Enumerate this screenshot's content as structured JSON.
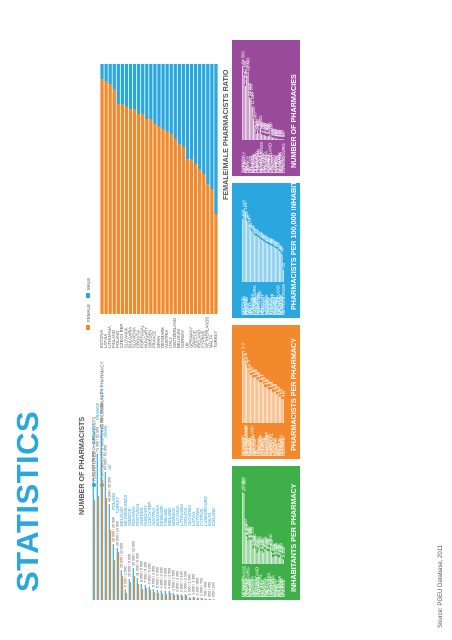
{
  "page": {
    "title": "STATISTICS",
    "source": "Source: PGEU Database, 2011"
  },
  "colors": {
    "blue": "#2aa7df",
    "orange": "#f28a2d",
    "green": "#3fb049",
    "purple": "#9a4a9a",
    "title": "#2aa7df"
  },
  "chart_data": [
    {
      "id": "number-of-pharmacists",
      "type": "bar",
      "title": "NUMBER OF PHARMACISTS",
      "legend": [
        "REGISTERED PHARMACISTS",
        "PHARMACISTS WORKING IN COMMUNITY PHARMACY"
      ],
      "categories": [
        "GERMANY",
        "FRANCE",
        "ITALY",
        "SPAIN",
        "UK",
        "POLAND",
        "TURKEY",
        "BELGIUM",
        "NETHERLANDS",
        "GREECE",
        "ROMANIA",
        "PORTUGAL",
        "SWEDEN",
        "HUNGARY",
        "CZECH REP.",
        "AUSTRIA",
        "BULGARIA",
        "DENMARK",
        "FINLAND",
        "IRELAND",
        "NORWAY",
        "SLOVAKIA",
        "LITHUANIA",
        "CROATIA",
        "SLOVENIA",
        "LATVIA",
        "ESTONIA",
        "CYPRUS",
        "LUXEMBOURG",
        "MALTA",
        "ICELAND"
      ],
      "series": [
        {
          "name": "REGISTERED PHARMACISTS",
          "values": [
            61000,
            73000,
            85000,
            64000,
            48000,
            28000,
            26000,
            15000,
            5300,
            10500,
            16000,
            11000,
            8000,
            7600,
            6800,
            5500,
            5000,
            4800,
            4600,
            4600,
            3500,
            3000,
            2800,
            2900,
            1300,
            1600,
            1200,
            1000,
            700,
            600,
            350
          ]
        },
        {
          "name": "PHARMACISTS WORKING IN COMMUNITY PHARMACY",
          "values": [
            50000,
            52000,
            60000,
            51000,
            35000,
            20000,
            24000,
            12000,
            3500,
            9000,
            12000,
            8000,
            5500,
            6100,
            5200,
            3900,
            3500,
            3300,
            3000,
            3500,
            2500,
            2400,
            2100,
            2300,
            1000,
            1300,
            800,
            700,
            400,
            450,
            230
          ]
        }
      ],
      "value_labels": {
        "REGISTERED PHARMACISTS": [
          "61 000",
          "73 000",
          "85 000",
          "64 000",
          "48 000",
          "28 000",
          "26 000",
          "15 000",
          "5 300",
          "10 500",
          "16 000",
          "11 000",
          "8 000",
          "7 600",
          "6 800",
          "5 500",
          "5 000",
          "4 800",
          "4 600",
          "4 600",
          "3 500",
          "3 000",
          "2 800",
          "2 900",
          "1 300",
          "1 600",
          "1 200",
          "1 000",
          "700",
          "600",
          "350"
        ],
        "PHARMACISTS WORKING IN COMMUNITY PHARMACY": [
          "50 000",
          "52 000",
          "60 000",
          "51 000",
          "35 000",
          "20 000",
          "24 000",
          "12 000",
          "3 500",
          "9 000",
          "12 000",
          "8 000",
          "5 500",
          "6 100",
          "5 200",
          "3 900",
          "3 500",
          "3 300",
          "3 000",
          "3 500",
          "2 500",
          "2 400",
          "2 100",
          "2 300",
          "1 000",
          "1 300",
          "800",
          "700",
          "400",
          "450",
          "230"
        ]
      }
    },
    {
      "id": "female-male-ratio",
      "type": "bar",
      "stacked": true,
      "title": "FEMALE/MALE PHARMACISTS RATIO",
      "legend": [
        "FEMALE",
        "MALE"
      ],
      "categories": [
        "ESTONIA",
        "LATVIA",
        "LITHUANIA",
        "FINLAND",
        "POLAND",
        "CZECH REP.",
        "SLOVAKIA",
        "BULGARIA",
        "SLOVENIA",
        "CROATIA",
        "PORTUGAL",
        "HUNGARY",
        "SWEDEN",
        "FRANCE",
        "SPAIN",
        "DENMARK",
        "AUSTRIA",
        "ITALY",
        "SWITZERLAND",
        "BELGIUM",
        "NORWAY",
        "UK",
        "GERMANY",
        "GREECE",
        "IRELAND",
        "CYPRUS",
        "NETHERLANDS",
        "MALTA",
        "TURKEY"
      ],
      "series": [
        {
          "name": "FEMALE",
          "values": [
            94,
            93,
            92,
            90,
            84,
            84,
            83,
            82,
            82,
            80,
            80,
            78,
            78,
            76,
            75,
            74,
            73,
            72,
            70,
            68,
            67,
            62,
            62,
            60,
            58,
            56,
            52,
            50,
            40
          ]
        },
        {
          "name": "MALE",
          "values": [
            6,
            7,
            8,
            10,
            16,
            16,
            17,
            18,
            18,
            20,
            20,
            22,
            22,
            24,
            25,
            26,
            27,
            28,
            30,
            32,
            33,
            38,
            38,
            40,
            42,
            44,
            48,
            50,
            60
          ]
        }
      ],
      "xlim": [
        0,
        100
      ]
    },
    {
      "id": "inhabitants-per-pharmacy",
      "type": "bar",
      "title": "INHABITANTS PER PHARMACY",
      "color": "#3fb049",
      "categories": [
        "DENMARK",
        "NETHERLANDS",
        "SWEDEN",
        "AUSTRIA",
        "LUXEMBOURG",
        "FINLAND",
        "NORWAY",
        "SLOVENIA",
        "CROATIA",
        "UK",
        "GERMANY",
        "SWITZERLAND",
        "SLOVAKIA",
        "PORTUGAL",
        "LATVIA",
        "POLAND",
        "FRANCE",
        "ROMANIA",
        "ITALY",
        "ICELAND",
        "CZECH REP.",
        "HUNGARY",
        "ESTONIA",
        "LITHUANIA",
        "IRELAND",
        "SPAIN",
        "TURKEY",
        "MALTA",
        "BULGARIA",
        "BELGIUM",
        "CYPRUS",
        "GREECE"
      ],
      "values": [
        17800,
        17500,
        8000,
        6800,
        5800,
        6200,
        6000,
        6100,
        3900,
        4300,
        3800,
        2800,
        3300,
        3800,
        3200,
        3200,
        2800,
        3700,
        3500,
        3200,
        3100,
        4300,
        2900,
        1700,
        1900,
        2100,
        2000,
        1700,
        1600,
        2100,
        1400,
        1100
      ],
      "value_labels": [
        "17 800",
        "17 500",
        "8 000",
        "6 800",
        "5 800",
        "6 200",
        "6 000",
        "6 100",
        "3 900",
        "4 300",
        "3 800",
        "2 800",
        "3 300",
        "3 800",
        "3 200",
        "3 200",
        "2 800",
        "3 700",
        "3 500",
        "3 200",
        "3 100",
        "4 300",
        "2 900",
        "1 700",
        "1 900",
        "2 100",
        "2 000",
        "1 700",
        "1 600",
        "2 100",
        "1 400",
        "1 100"
      ]
    },
    {
      "id": "pharmacists-per-pharmacy",
      "type": "bar",
      "title": "PHARMACISTS PER PHARMACY",
      "color": "#f28a2d",
      "categories": [
        "DENMARK",
        "SWEDEN",
        "NETHERLANDS",
        "LUXEMBOURG",
        "IRELAND",
        "FINLAND",
        "NORWAY",
        "SWITZERLAND",
        "SLOVENIA",
        "FRANCE",
        "UK",
        "ITALY",
        "CROATIA",
        "SLOVAKIA",
        "GERMANY",
        "POLAND",
        "AUSTRIA",
        "BELGIUM",
        "CZECH REP.",
        "HUNGARY",
        "LITHUANIA",
        "TURKEY",
        "PORTUGAL",
        "LATVIA",
        "ESTONIA",
        "ICELAND",
        "SPAIN",
        "MALTA",
        "GREECE",
        "BULGARIA",
        "CYPRUS",
        "ROMANIA"
      ],
      "values": [
        3.0,
        2.7,
        2.6,
        2.4,
        2.3,
        2.1,
        2.0,
        2.0,
        1.9,
        1.9,
        1.9,
        1.8,
        1.8,
        1.7,
        1.7,
        1.7,
        1.6,
        1.5,
        1.5,
        1.5,
        1.4,
        1.4,
        1.4,
        1.3,
        1.3,
        1.3,
        1.2,
        1.2,
        1.1,
        1.1,
        1.0,
        1.0
      ],
      "value_labels": [
        "3.0",
        "2.7",
        "2.6",
        "2.4",
        "2.3",
        "2.1",
        "2.0",
        "2.0",
        "1.9",
        "1.9",
        "1.9",
        "1.8",
        "1.8",
        "1.7",
        "1.7",
        "1.7",
        "1.6",
        "1.5",
        "1.5",
        "1.5",
        "1.4",
        "1.4",
        "1.4",
        "1.3",
        "1.3",
        "1.3",
        "1.2",
        "1.2",
        "1.1",
        "1.1",
        "1.0",
        "1.0"
      ]
    },
    {
      "id": "pharmacists-per-100000",
      "type": "bar",
      "title": "PHARMACISTS PER 100,000 INHABITANTS",
      "color": "#2aa7df",
      "categories": [
        "GREECE",
        "BELGIUM",
        "FRANCE",
        "IRELAND",
        "SPAIN",
        "ITALY",
        "MALTA",
        "BULGARIA",
        "CYPRUS",
        "LUXEMBOURG",
        "FINLAND",
        "LITHUANIA",
        "PORTUGAL",
        "CZECH REP.",
        "UK",
        "HUNGARY",
        "ESTONIA",
        "LATVIA",
        "SLOVAKIA",
        "SWEDEN",
        "TURKEY",
        "POLAND",
        "SLOVENIA",
        "GERMANY",
        "NORWAY",
        "ICELAND",
        "AUSTRIA",
        "SWITZERLAND",
        "CROATIA",
        "DENMARK",
        "ROMANIA",
        "NETHERLANDS"
      ],
      "values": [
        102,
        118,
        114,
        100,
        98,
        93,
        85,
        82,
        80,
        76,
        75,
        74,
        72,
        71,
        69,
        68,
        66,
        65,
        63,
        62,
        61,
        60,
        59,
        58,
        57,
        55,
        54,
        53,
        50,
        48,
        45,
        20
      ],
      "value_labels": [
        "102",
        "118",
        "114",
        "100",
        "98",
        "93",
        "85",
        "82",
        "80",
        "76",
        "75",
        "74",
        "72",
        "71",
        "69",
        "68",
        "66",
        "65",
        "63",
        "62",
        "61",
        "60",
        "59",
        "58",
        "57",
        "55",
        "54",
        "53",
        "50",
        "48",
        "45",
        "20"
      ]
    },
    {
      "id": "number-of-pharmacies",
      "type": "bar",
      "title": "NUMBER OF PHARMACIES",
      "color": "#9a4a9a",
      "categories": [
        "TURKEY",
        "GERMANY",
        "ITALY",
        "SPAIN",
        "FRANCE",
        "UK",
        "POLAND",
        "GREECE",
        "ROMANIA",
        "BELGIUM",
        "HUNGARY",
        "PORTUGAL",
        "CZECH REP.",
        "BULGARIA",
        "NETHERLANDS",
        "SLOVAKIA",
        "IRELAND",
        "LITHUANIA",
        "SWEDEN",
        "AUSTRIA",
        "SWITZERLAND",
        "CROATIA",
        "FINLAND",
        "LATVIA",
        "NORWAY",
        "CYPRUS",
        "ESTONIA",
        "DENMARK",
        "SLOVENIA",
        "MALTA",
        "LUXEMBOURG"
      ],
      "values": [
        24500,
        21400,
        17900,
        21200,
        22400,
        14000,
        13800,
        11000,
        7000,
        5000,
        2000,
        2800,
        2300,
        4000,
        1900,
        1700,
        1600,
        1400,
        1200,
        1300,
        1700,
        1100,
        800,
        800,
        600,
        500,
        480,
        310,
        290,
        210,
        90
      ],
      "value_labels": [
        "24 500",
        "21 400",
        "17 900",
        "21 200",
        "22 400",
        "14 000",
        "13 800",
        "11 000",
        "7 000",
        "5 000",
        "2 000",
        "2 800",
        "2 300",
        "4 000",
        "1 900",
        "1 700",
        "1 600",
        "1 400",
        "1 200",
        "1 300",
        "1 700",
        "1 100",
        "800",
        "800",
        "600",
        "500",
        "480",
        "310",
        "290",
        "210",
        "90"
      ]
    }
  ]
}
